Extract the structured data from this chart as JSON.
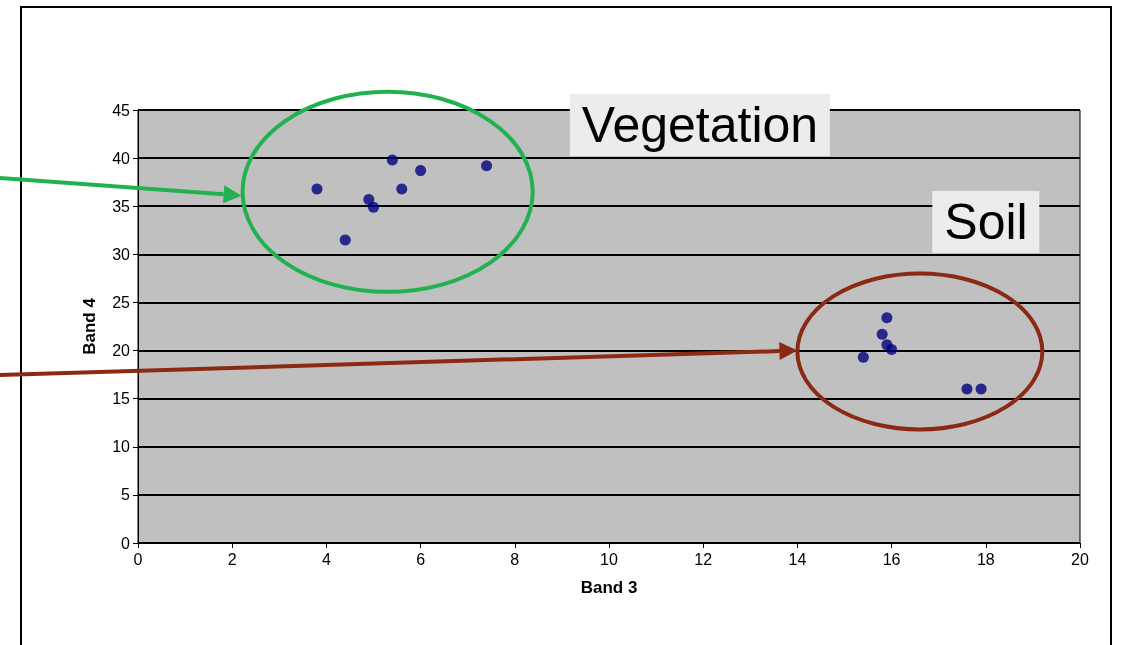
{
  "chart_data": {
    "type": "scatter",
    "xlabel": "Band 3",
    "ylabel": "Band 4",
    "x": [
      3.8,
      4.4,
      4.9,
      5.0,
      5.4,
      5.6,
      6.0,
      7.4,
      15.4,
      15.8,
      15.9,
      15.9,
      16.0,
      17.6,
      17.9
    ],
    "values": [
      36.8,
      31.5,
      35.7,
      34.9,
      39.8,
      36.8,
      38.7,
      39.2,
      19.3,
      21.7,
      23.4,
      20.6,
      20.1,
      16.0,
      16.0
    ],
    "color": "#000080",
    "marker": "circle",
    "xlim": [
      0,
      20
    ],
    "xticks": [
      0,
      2,
      4,
      6,
      8,
      10,
      12,
      14,
      16,
      18,
      20
    ],
    "ylim": [
      0,
      45
    ],
    "yticks": [
      0,
      5,
      10,
      15,
      20,
      25,
      30,
      35,
      40,
      45
    ],
    "grid": "y",
    "annotations": [
      "Vegetation",
      "Soil"
    ]
  }
}
